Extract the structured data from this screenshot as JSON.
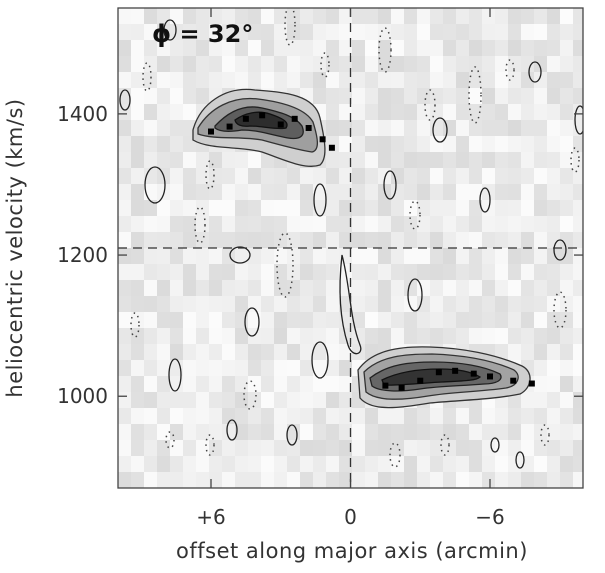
{
  "chart_data": {
    "type": "heatmap",
    "panel_label": "ϕ = 32°",
    "xlabel": "offset along major axis (arcmin)",
    "ylabel": "heliocentric velocity (km/s)",
    "xlim": [
      10,
      -10
    ],
    "ylim": [
      870,
      1550
    ],
    "x_ticks": [
      6,
      0,
      -6
    ],
    "x_tick_labels": [
      "+6",
      "0",
      "−6"
    ],
    "y_ticks": [
      1000,
      1200,
      1400
    ],
    "y_tick_labels": [
      "1000",
      "1200",
      "1400"
    ],
    "reference_lines": {
      "x": 0,
      "y": 1210
    },
    "rotation_trace": {
      "x": [
        6.0,
        5.2,
        4.5,
        3.8,
        3.0,
        2.4,
        1.8,
        1.2,
        0.8,
        -1.5,
        -2.2,
        -3.0,
        -3.8,
        -4.5,
        -5.3,
        -6.0,
        -7.0,
        -7.8
      ],
      "y": [
        1375,
        1382,
        1393,
        1398,
        1385,
        1393,
        1380,
        1364,
        1352,
        1015,
        1012,
        1022,
        1034,
        1036,
        1032,
        1028,
        1022,
        1018
      ]
    }
  }
}
